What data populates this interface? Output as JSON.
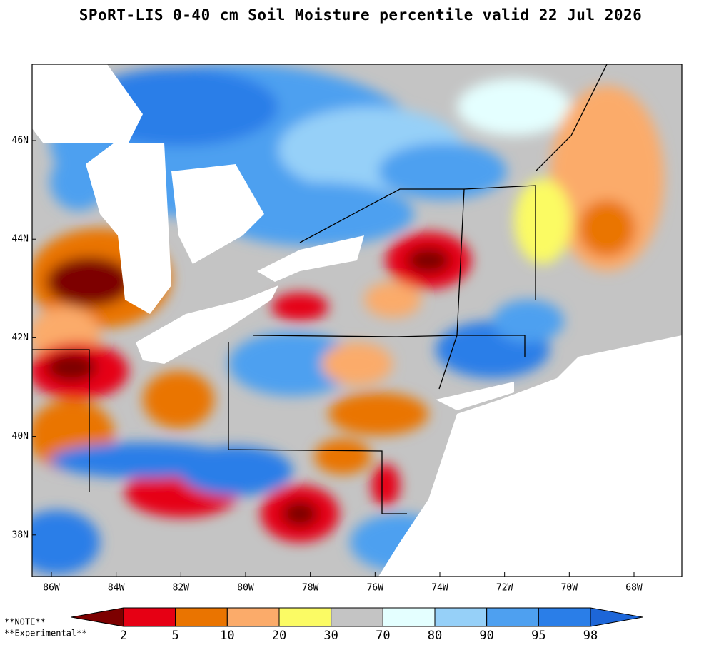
{
  "title": "SPoRT-LIS 0-40 cm Soil Moisture percentile valid 22 Jul 2026",
  "map": {
    "lon_ticks": [
      {
        "value": -86,
        "label": "86W"
      },
      {
        "value": -84,
        "label": "84W"
      },
      {
        "value": -82,
        "label": "82W"
      },
      {
        "value": -80,
        "label": "80W"
      },
      {
        "value": -78,
        "label": "78W"
      },
      {
        "value": -76,
        "label": "76W"
      },
      {
        "value": -74,
        "label": "74W"
      },
      {
        "value": -72,
        "label": "72W"
      },
      {
        "value": -70,
        "label": "70W"
      },
      {
        "value": -68,
        "label": "68W"
      }
    ],
    "lat_ticks": [
      {
        "value": 38,
        "label": "38N"
      },
      {
        "value": 40,
        "label": "40N"
      },
      {
        "value": 42,
        "label": "42N"
      },
      {
        "value": 44,
        "label": "44N"
      },
      {
        "value": 46,
        "label": "46N"
      }
    ]
  },
  "colorbar": {
    "bounds": [
      2,
      5,
      10,
      20,
      30,
      70,
      80,
      90,
      95,
      98
    ],
    "colors": [
      "#7d0000",
      "#e60014",
      "#ea7400",
      "#fbab6a",
      "#fbfb64",
      "#c4c4c4",
      "#e4ffff",
      "#96d0f8",
      "#4ea0f0",
      "#2a7ee8",
      "#1d66d8"
    ]
  },
  "notes": [
    "**NOTE**",
    "**Experimental**"
  ]
}
